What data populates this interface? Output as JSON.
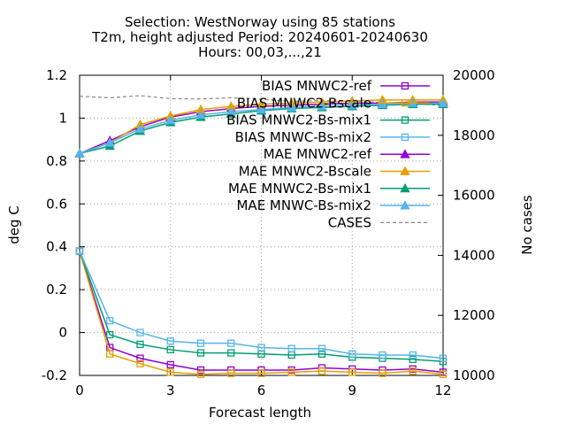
{
  "chart_data": {
    "type": "line",
    "title_lines": [
      "Selection: WestNorway using    85 stations",
      "T2m, height adjusted   Period: 20240601-20240630",
      "Hours: 00,03,...,21"
    ],
    "xlabel": "Forecast length",
    "ylabel": "deg C",
    "y2label": "No cases",
    "xlim": [
      0,
      12
    ],
    "ylim": [
      -0.2,
      1.2
    ],
    "y2lim": [
      10000,
      20000
    ],
    "xticks": [
      0,
      3,
      6,
      9,
      12
    ],
    "yticks": [
      -0.2,
      0,
      0.2,
      0.4,
      0.6,
      0.8,
      1,
      1.2
    ],
    "ytick_labels": [
      "-0.2",
      "0",
      "0.2",
      "0.4",
      "0.6",
      "0.8",
      "1",
      "1.2"
    ],
    "y2ticks": [
      10000,
      12000,
      14000,
      16000,
      18000,
      20000
    ],
    "grid": true,
    "legend_position": "top-right",
    "x": [
      0,
      1,
      2,
      3,
      4,
      5,
      6,
      7,
      8,
      9,
      10,
      11,
      12
    ],
    "series": [
      {
        "name": "BIAS MNWC2-ref",
        "color": "#9400d3",
        "marker": "open-square",
        "axis": "y1",
        "values": [
          0.38,
          -0.07,
          -0.12,
          -0.15,
          -0.175,
          -0.175,
          -0.175,
          -0.175,
          -0.165,
          -0.17,
          -0.175,
          -0.17,
          -0.185
        ]
      },
      {
        "name": "BIAS MNWC2-Bscale",
        "color": "#e69f00",
        "marker": "open-square",
        "axis": "y1",
        "values": [
          0.38,
          -0.1,
          -0.145,
          -0.185,
          -0.195,
          -0.19,
          -0.19,
          -0.185,
          -0.18,
          -0.185,
          -0.19,
          -0.18,
          -0.195
        ]
      },
      {
        "name": "BIAS MNWC2-Bs-mix1",
        "color": "#009e73",
        "marker": "open-square",
        "axis": "y1",
        "values": [
          0.38,
          -0.01,
          -0.055,
          -0.08,
          -0.095,
          -0.095,
          -0.1,
          -0.105,
          -0.1,
          -0.115,
          -0.12,
          -0.125,
          -0.135
        ]
      },
      {
        "name": "BIAS MNWC-Bs-mix2",
        "color": "#56b4e9",
        "marker": "open-square",
        "axis": "y1",
        "values": [
          0.38,
          0.055,
          0.0,
          -0.04,
          -0.05,
          -0.05,
          -0.07,
          -0.075,
          -0.075,
          -0.1,
          -0.105,
          -0.105,
          -0.12
        ]
      },
      {
        "name": "MAE MNWC2-ref",
        "color": "#9400d3",
        "marker": "filled-triangle",
        "axis": "y1",
        "values": [
          0.835,
          0.895,
          0.96,
          1.005,
          1.03,
          1.045,
          1.055,
          1.06,
          1.065,
          1.07,
          1.07,
          1.075,
          1.075
        ]
      },
      {
        "name": "MAE MNWC2-Bscale",
        "color": "#e69f00",
        "marker": "filled-triangle",
        "axis": "y1",
        "values": [
          0.835,
          0.885,
          0.97,
          1.01,
          1.04,
          1.055,
          1.065,
          1.07,
          1.075,
          1.08,
          1.085,
          1.085,
          1.085
        ]
      },
      {
        "name": "MAE MNWC2-Bs-mix1",
        "color": "#009e73",
        "marker": "filled-triangle",
        "axis": "y1",
        "values": [
          0.835,
          0.87,
          0.94,
          0.98,
          1.005,
          1.02,
          1.035,
          1.045,
          1.05,
          1.055,
          1.06,
          1.065,
          1.065
        ]
      },
      {
        "name": "MAE MNWC-Bs-mix2",
        "color": "#56b4e9",
        "marker": "filled-triangle",
        "axis": "y1",
        "values": [
          0.835,
          0.885,
          0.95,
          0.99,
          1.015,
          1.03,
          1.04,
          1.05,
          1.055,
          1.06,
          1.065,
          1.07,
          1.07
        ]
      },
      {
        "name": "CASES",
        "color": "#888888",
        "marker": "none",
        "dashed": true,
        "axis": "y2",
        "values": [
          19300,
          19250,
          19320,
          19220,
          19210,
          19250,
          19200,
          19130,
          19160,
          19130,
          19100,
          19050,
          19000
        ]
      }
    ]
  }
}
